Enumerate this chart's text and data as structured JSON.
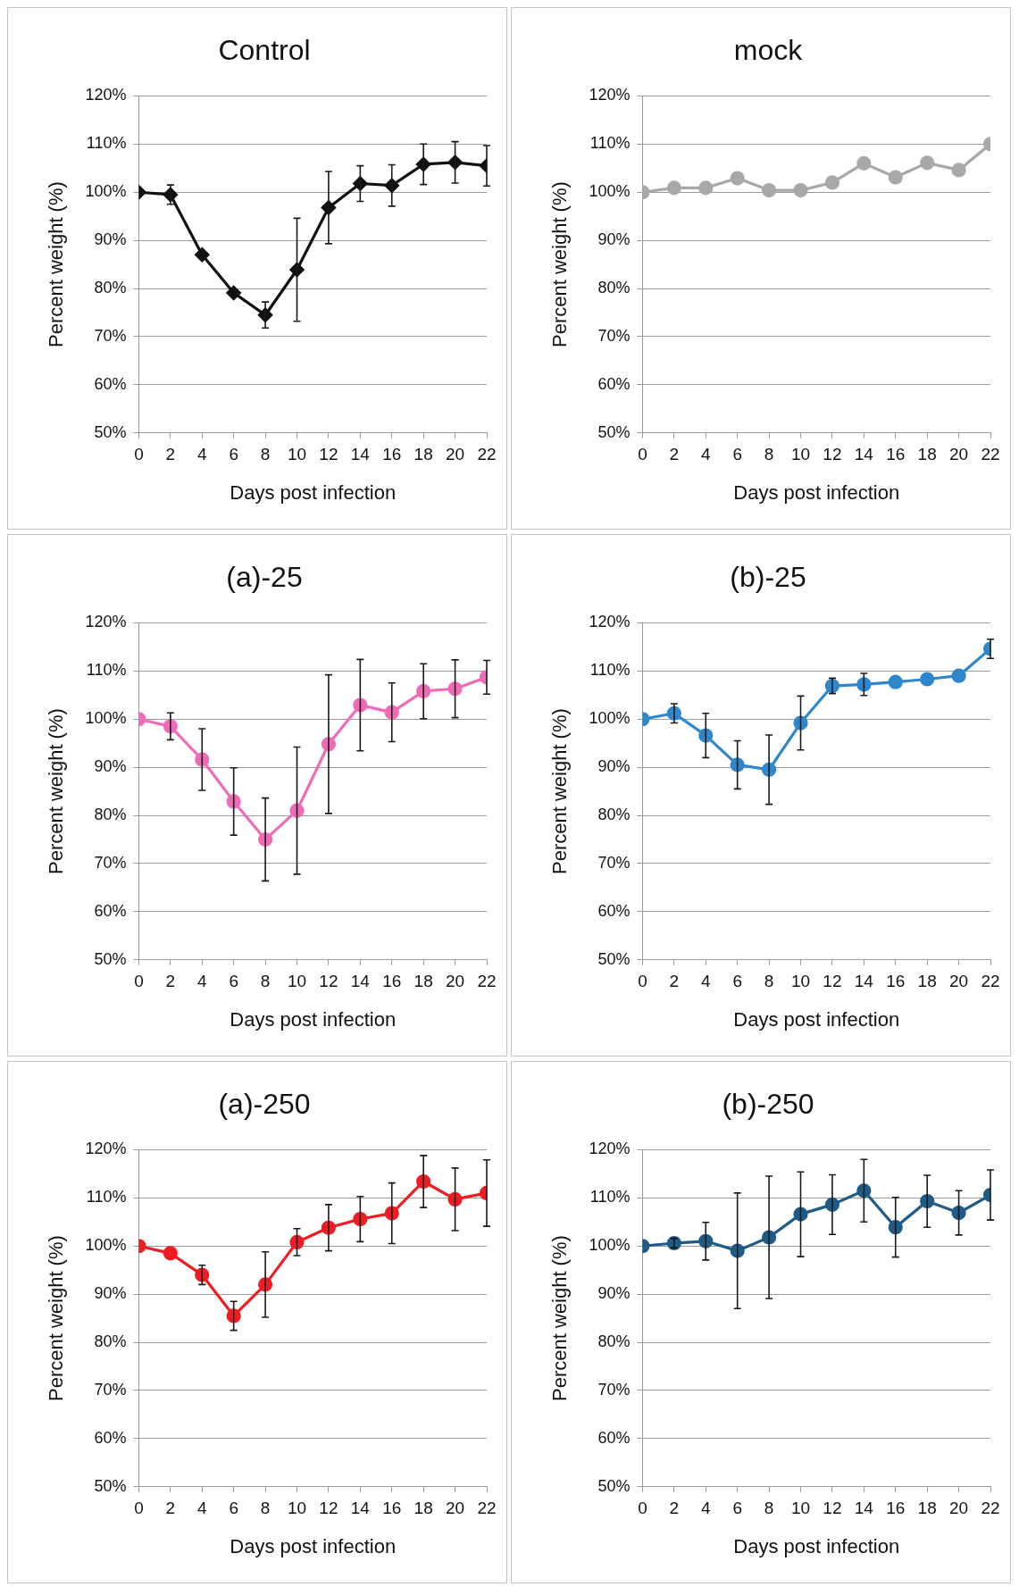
{
  "chart_data": [
    {
      "type": "line",
      "title": "Control",
      "xlabel": "Days post infection",
      "ylabel": "Percent weight (%)",
      "x": [
        0,
        2,
        4,
        6,
        8,
        10,
        12,
        14,
        16,
        18,
        20,
        22
      ],
      "xlim": [
        0,
        22
      ],
      "xticks": [
        0,
        2,
        4,
        6,
        8,
        10,
        12,
        14,
        16,
        18,
        20,
        22
      ],
      "ylim": [
        50,
        120
      ],
      "yticks": [
        {
          "value": 50,
          "label": "50%"
        },
        {
          "value": 60,
          "label": "60%"
        },
        {
          "value": 70,
          "label": "70%"
        },
        {
          "value": 80,
          "label": "80%"
        },
        {
          "value": 90,
          "label": "90%"
        },
        {
          "value": 100,
          "label": "100%"
        },
        {
          "value": 110,
          "label": "110%"
        },
        {
          "value": 120,
          "label": "120%"
        }
      ],
      "grid": "y",
      "marker": "diamond",
      "series": [
        {
          "color": "#111111",
          "values": [
            100,
            99.5,
            87,
            79.1,
            74.5,
            83.9,
            96.8,
            101.8,
            101.4,
            105.8,
            106.2,
            105.5
          ],
          "errors": [
            null,
            2,
            null,
            null,
            2.7,
            10.7,
            7.5,
            3.7,
            4.3,
            4.2,
            4.3,
            4.2
          ]
        }
      ]
    },
    {
      "type": "line",
      "title": "mock",
      "xlabel": "Days post infection",
      "ylabel": "Percent weight (%)",
      "x": [
        0,
        2,
        4,
        6,
        8,
        10,
        12,
        14,
        16,
        18,
        20,
        22
      ],
      "xlim": [
        0,
        22
      ],
      "xticks": [
        0,
        2,
        4,
        6,
        8,
        10,
        12,
        14,
        16,
        18,
        20,
        22
      ],
      "ylim": [
        50,
        120
      ],
      "yticks": [
        {
          "value": 50,
          "label": "50%"
        },
        {
          "value": 60,
          "label": "60%"
        },
        {
          "value": 70,
          "label": "70%"
        },
        {
          "value": 80,
          "label": "80%"
        },
        {
          "value": 90,
          "label": "90%"
        },
        {
          "value": 100,
          "label": "100%"
        },
        {
          "value": 110,
          "label": "110%"
        },
        {
          "value": 120,
          "label": "120%"
        }
      ],
      "grid": "y",
      "marker": "circle",
      "series": [
        {
          "color": "#a8a8a8",
          "values": [
            100,
            100.9,
            100.9,
            102.9,
            100.4,
            100.4,
            102,
            106,
            103.1,
            106.1,
            104.6,
            110
          ]
        }
      ]
    },
    {
      "type": "line",
      "title": "(a)-25",
      "xlabel": "Days post infection",
      "ylabel": "Percent weight (%)",
      "x": [
        0,
        2,
        4,
        6,
        8,
        10,
        12,
        14,
        16,
        18,
        20,
        22
      ],
      "xlim": [
        0,
        22
      ],
      "xticks": [
        0,
        2,
        4,
        6,
        8,
        10,
        12,
        14,
        16,
        18,
        20,
        22
      ],
      "ylim": [
        50,
        120
      ],
      "yticks": [
        {
          "value": 50,
          "label": "50%"
        },
        {
          "value": 60,
          "label": "60%"
        },
        {
          "value": 70,
          "label": "70%"
        },
        {
          "value": 80,
          "label": "80%"
        },
        {
          "value": 90,
          "label": "90%"
        },
        {
          "value": 100,
          "label": "100%"
        },
        {
          "value": 110,
          "label": "110%"
        },
        {
          "value": 120,
          "label": "120%"
        }
      ],
      "grid": "y",
      "marker": "circle",
      "series": [
        {
          "color": "#f06bb6",
          "values": [
            100,
            98.5,
            91.6,
            82.9,
            75,
            81,
            94.8,
            102.9,
            101.4,
            105.8,
            106.3,
            108.7
          ],
          "errors": [
            null,
            2.8,
            6.4,
            7,
            8.6,
            13.2,
            14.4,
            9.5,
            6.1,
            5.7,
            6,
            3.5
          ]
        }
      ]
    },
    {
      "type": "line",
      "title": "(b)-25",
      "xlabel": "Days post infection",
      "ylabel": "Percent weight (%)",
      "x": [
        0,
        2,
        4,
        6,
        8,
        10,
        12,
        14,
        16,
        18,
        20,
        22
      ],
      "xlim": [
        0,
        22
      ],
      "xticks": [
        0,
        2,
        4,
        6,
        8,
        10,
        12,
        14,
        16,
        18,
        20,
        22
      ],
      "ylim": [
        50,
        120
      ],
      "yticks": [
        {
          "value": 50,
          "label": "50%"
        },
        {
          "value": 60,
          "label": "60%"
        },
        {
          "value": 70,
          "label": "70%"
        },
        {
          "value": 80,
          "label": "80%"
        },
        {
          "value": 90,
          "label": "90%"
        },
        {
          "value": 100,
          "label": "100%"
        },
        {
          "value": 110,
          "label": "110%"
        },
        {
          "value": 120,
          "label": "120%"
        }
      ],
      "grid": "y",
      "marker": "circle",
      "series": [
        {
          "color": "#2f87cb",
          "values": [
            100,
            101.2,
            96.6,
            90.5,
            89.5,
            99.2,
            106.9,
            107.2,
            107.7,
            108.3,
            109,
            114.6
          ],
          "errors": [
            null,
            2,
            4.6,
            5,
            7.2,
            5.6,
            1.6,
            2.3,
            null,
            null,
            null,
            2
          ]
        }
      ]
    },
    {
      "type": "line",
      "title": "(a)-250",
      "xlabel": "Days post infection",
      "ylabel": "Percent weight (%)",
      "x": [
        0,
        2,
        4,
        6,
        8,
        10,
        12,
        14,
        16,
        18,
        20,
        22
      ],
      "xlim": [
        0,
        22
      ],
      "xticks": [
        0,
        2,
        4,
        6,
        8,
        10,
        12,
        14,
        16,
        18,
        20,
        22
      ],
      "ylim": [
        50,
        120
      ],
      "yticks": [
        {
          "value": 50,
          "label": "50%"
        },
        {
          "value": 60,
          "label": "60%"
        },
        {
          "value": 70,
          "label": "70%"
        },
        {
          "value": 80,
          "label": "80%"
        },
        {
          "value": 90,
          "label": "90%"
        },
        {
          "value": 100,
          "label": "100%"
        },
        {
          "value": 110,
          "label": "110%"
        },
        {
          "value": 120,
          "label": "120%"
        }
      ],
      "grid": "y",
      "marker": "circle",
      "series": [
        {
          "color": "#ee1d23",
          "values": [
            100,
            98.5,
            94,
            85.5,
            92,
            100.8,
            103.8,
            105.6,
            106.8,
            113.4,
            109.7,
            111
          ],
          "errors": [
            null,
            null,
            2,
            3,
            6.8,
            2.8,
            4.8,
            4.7,
            6.3,
            5.4,
            6.5,
            6.9
          ]
        }
      ]
    },
    {
      "type": "line",
      "title": "(b)-250",
      "xlabel": "Days post infection",
      "ylabel": "Percent weight (%)",
      "x": [
        0,
        2,
        4,
        6,
        8,
        10,
        12,
        14,
        16,
        18,
        20,
        22
      ],
      "xlim": [
        0,
        22
      ],
      "xticks": [
        0,
        2,
        4,
        6,
        8,
        10,
        12,
        14,
        16,
        18,
        20,
        22
      ],
      "ylim": [
        50,
        120
      ],
      "yticks": [
        {
          "value": 50,
          "label": "50%"
        },
        {
          "value": 60,
          "label": "60%"
        },
        {
          "value": 70,
          "label": "70%"
        },
        {
          "value": 80,
          "label": "80%"
        },
        {
          "value": 90,
          "label": "90%"
        },
        {
          "value": 100,
          "label": "100%"
        },
        {
          "value": 110,
          "label": "110%"
        },
        {
          "value": 120,
          "label": "120%"
        }
      ],
      "grid": "y",
      "marker": "circle",
      "series": [
        {
          "color": "#1e5b86",
          "values": [
            100,
            100.6,
            101,
            99,
            101.8,
            106.6,
            108.6,
            111.5,
            103.9,
            109.3,
            106.9,
            110.6
          ],
          "errors": [
            null,
            1,
            3.9,
            12,
            12.7,
            8.8,
            6.2,
            6.5,
            6.2,
            5.4,
            4.6,
            5.2
          ]
        }
      ]
    }
  ]
}
